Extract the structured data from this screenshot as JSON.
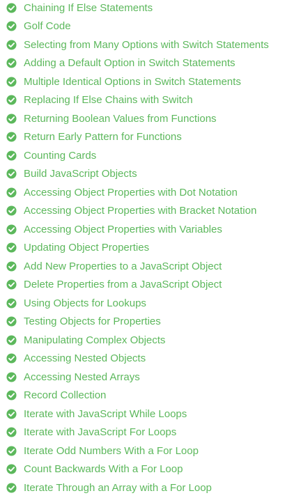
{
  "colors": {
    "completed": "#5cb85c",
    "check_mark": "#ffffff"
  },
  "challenges": [
    {
      "label": "Chaining If Else Statements",
      "status": "completed",
      "icon": "check-circle-icon"
    },
    {
      "label": "Golf Code",
      "status": "completed",
      "icon": "check-circle-icon"
    },
    {
      "label": "Selecting from Many Options with Switch Statements",
      "status": "completed",
      "icon": "check-circle-icon"
    },
    {
      "label": "Adding a Default Option in Switch Statements",
      "status": "completed",
      "icon": "check-circle-icon"
    },
    {
      "label": "Multiple Identical Options in Switch Statements",
      "status": "completed",
      "icon": "check-circle-icon"
    },
    {
      "label": "Replacing If Else Chains with Switch",
      "status": "completed",
      "icon": "check-circle-icon"
    },
    {
      "label": "Returning Boolean Values from Functions",
      "status": "completed",
      "icon": "check-circle-icon"
    },
    {
      "label": "Return Early Pattern for Functions",
      "status": "completed",
      "icon": "check-circle-icon"
    },
    {
      "label": "Counting Cards",
      "status": "completed",
      "icon": "check-circle-icon"
    },
    {
      "label": "Build JavaScript Objects",
      "status": "completed",
      "icon": "check-circle-icon"
    },
    {
      "label": "Accessing Object Properties with Dot Notation",
      "status": "completed",
      "icon": "check-circle-icon"
    },
    {
      "label": "Accessing Object Properties with Bracket Notation",
      "status": "completed",
      "icon": "check-circle-icon"
    },
    {
      "label": "Accessing Object Properties with Variables",
      "status": "completed",
      "icon": "check-circle-icon"
    },
    {
      "label": "Updating Object Properties",
      "status": "completed",
      "icon": "check-circle-icon"
    },
    {
      "label": "Add New Properties to a JavaScript Object",
      "status": "completed",
      "icon": "check-circle-icon"
    },
    {
      "label": "Delete Properties from a JavaScript Object",
      "status": "completed",
      "icon": "check-circle-icon"
    },
    {
      "label": "Using Objects for Lookups",
      "status": "completed",
      "icon": "check-circle-icon"
    },
    {
      "label": "Testing Objects for Properties",
      "status": "completed",
      "icon": "check-circle-icon"
    },
    {
      "label": "Manipulating Complex Objects",
      "status": "completed",
      "icon": "check-circle-icon"
    },
    {
      "label": "Accessing Nested Objects",
      "status": "completed",
      "icon": "check-circle-icon"
    },
    {
      "label": "Accessing Nested Arrays",
      "status": "completed",
      "icon": "check-circle-icon"
    },
    {
      "label": "Record Collection",
      "status": "completed",
      "icon": "check-circle-icon"
    },
    {
      "label": "Iterate with JavaScript While Loops",
      "status": "completed",
      "icon": "check-circle-icon"
    },
    {
      "label": "Iterate with JavaScript For Loops",
      "status": "completed",
      "icon": "check-circle-icon"
    },
    {
      "label": "Iterate Odd Numbers With a For Loop",
      "status": "completed",
      "icon": "check-circle-icon"
    },
    {
      "label": "Count Backwards With a For Loop",
      "status": "completed",
      "icon": "check-circle-icon"
    },
    {
      "label": "Iterate Through an Array with a For Loop",
      "status": "completed",
      "icon": "check-circle-icon"
    }
  ]
}
